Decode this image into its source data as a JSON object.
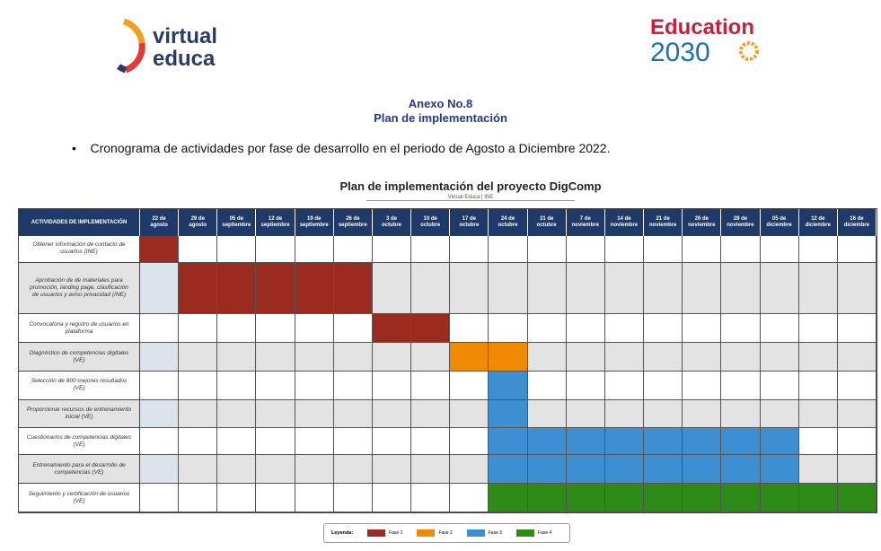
{
  "header": {
    "logo_left": [
      "virtual",
      "educa"
    ],
    "logo_right": [
      "Education",
      "2030"
    ]
  },
  "annex": {
    "title": "Anexo No.8",
    "subtitle": "Plan de implementación"
  },
  "bullet": "Cronograma de actividades por fase de desarrollo en el periodo de Agosto a Diciembre 2022.",
  "gantt": {
    "title": "Plan de implementación del proyecto DigComp",
    "subtitle": "Virtual Educa | INE",
    "corner": "ACTIVIDADES DE IMPLEMENTACIÓN",
    "weeks": [
      [
        "22 de",
        "agosto"
      ],
      [
        "29 de",
        "agosto"
      ],
      [
        "05 de",
        "septiembre"
      ],
      [
        "12 de",
        "septiembre"
      ],
      [
        "19 de",
        "septiembre"
      ],
      [
        "26 de",
        "septiembre"
      ],
      [
        "3 de",
        "octubre"
      ],
      [
        "10 de",
        "octubre"
      ],
      [
        "17 de",
        "octubre"
      ],
      [
        "24 de",
        "octubre"
      ],
      [
        "31 de",
        "octubre"
      ],
      [
        "7 de",
        "noviembre"
      ],
      [
        "14 de",
        "noviembre"
      ],
      [
        "21 de",
        "noviembre"
      ],
      [
        "26 de",
        "noviembre"
      ],
      [
        "28 de",
        "noviembre"
      ],
      [
        "05 de",
        "diciembre"
      ],
      [
        "12 de",
        "diciembre"
      ],
      [
        "16 de",
        "diciembre"
      ]
    ],
    "tasks": [
      {
        "label": "Obtener información de contacto de usuarios (INE)",
        "phase": "Fase 1",
        "start": "22 de agosto",
        "end": "22 de agosto"
      },
      {
        "label": "Aprobación de de materiales para promoción, landing page, clasificación de usuarios y aviso privacidad (INE)",
        "phase": "Fase 1",
        "start": "29 de agosto",
        "end": "26 de septiembre"
      },
      {
        "label": "Convocatoria y registro de usuarios en plataforma",
        "phase": "Fase 1",
        "start": "3 de octubre",
        "end": "10 de octubre"
      },
      {
        "label": "Diagnóstico de competencias digitales (VE)",
        "phase": "Fase 2",
        "start": "17 de octubre",
        "end": "24 de octubre"
      },
      {
        "label": "Selección de 800 mejores resultados (VE)",
        "phase": "Fase 3",
        "start": "24 de octubre",
        "end": "24 de octubre"
      },
      {
        "label": "Proporcionar recursos de entrenamiento inicial (VE)",
        "phase": "Fase 3",
        "start": "24 de octubre",
        "end": "24 de octubre"
      },
      {
        "label": "Cuestionarios de competencias digitales (VE)",
        "phase": "Fase 3",
        "start": "24 de octubre",
        "end": "05 de diciembre"
      },
      {
        "label": "Entrenamiento para el desarrollo de competencias (VE)",
        "phase": "Fase 3",
        "start": "24 de octubre",
        "end": "05 de diciembre"
      },
      {
        "label": "Seguimiento y certificación de usuarios (VE)",
        "phase": "Fase 4",
        "start": "24 de octubre",
        "end": "16 de diciembre"
      }
    ],
    "legend_title": "Leyenda:",
    "legend": [
      {
        "name": "Fase 1",
        "color": "#9b2a1f"
      },
      {
        "name": "Fase 2",
        "color": "#f08a00"
      },
      {
        "name": "Fase 3",
        "color": "#3d8fd1"
      },
      {
        "name": "Fase 4",
        "color": "#2e8b17"
      }
    ]
  }
}
